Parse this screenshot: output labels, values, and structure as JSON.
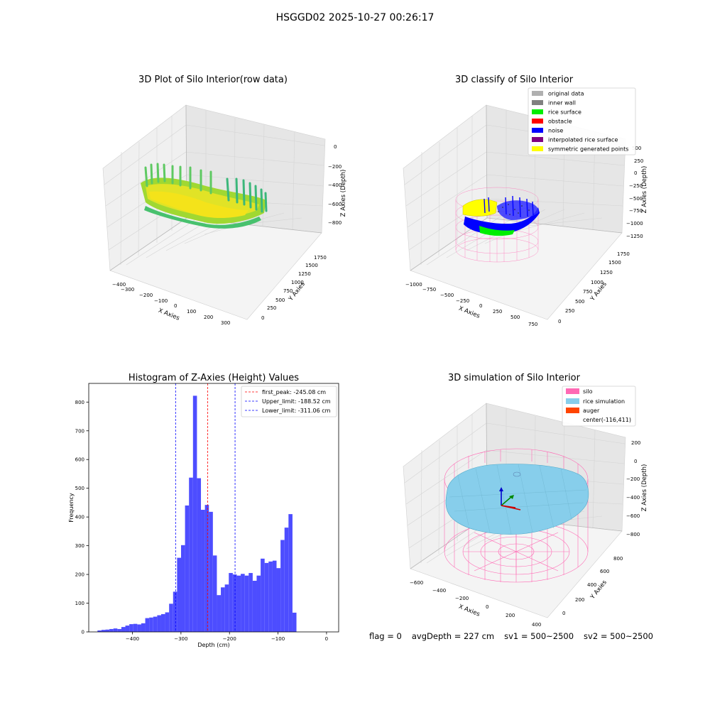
{
  "suptitle": "HSGGD02 2025-10-27 00:26:17",
  "colors": {
    "inner_wall": "#808080",
    "original_data": "#b0b0b0",
    "rice_surface": "#00ee00",
    "obstacle": "#ff0000",
    "noise": "#0000ff",
    "interpolated_rice_surface": "#800080",
    "symmetric_generated_points": "#ffff00",
    "silo": "#ff69b4",
    "rice_simulation": "#87ceeb",
    "auger": "#ff4500",
    "histogram": "#4d4dff"
  },
  "panels": {
    "raw": {
      "title": "3D Plot of Silo Interior(row data)",
      "xlabel": "X Axies",
      "ylabel": "Y Axies",
      "zlabel": "Z Axies (Depth)",
      "xticks": [
        "−400",
        "−300",
        "−200",
        "−100",
        "0",
        "100",
        "200",
        "300"
      ],
      "yticks": [
        "0",
        "250",
        "500",
        "750",
        "1000",
        "1250",
        "1500",
        "1750"
      ],
      "zticks": [
        "0",
        "−200",
        "−400",
        "−600",
        "−800"
      ]
    },
    "classify": {
      "title": "3D classify of Silo Interior",
      "xlabel": "X Axies",
      "ylabel": "Y Axies",
      "zlabel": "Z Axies (Depth)",
      "xticks": [
        "−1000",
        "−750",
        "−500",
        "−250",
        "0",
        "250",
        "500",
        "750"
      ],
      "yticks": [
        "0",
        "250",
        "500",
        "750",
        "1000",
        "1250",
        "1500",
        "1750"
      ],
      "zticks": [
        "500",
        "250",
        "0",
        "−250",
        "−500",
        "−750",
        "−1000",
        "−1250"
      ],
      "legend": [
        {
          "label": "original data",
          "color_key": "original_data"
        },
        {
          "label": "inner wall",
          "color_key": "inner_wall"
        },
        {
          "label": "rice surface",
          "color_key": "rice_surface"
        },
        {
          "label": "obstacle",
          "color_key": "obstacle"
        },
        {
          "label": "noise",
          "color_key": "noise"
        },
        {
          "label": "interpolated rice surface",
          "color_key": "interpolated_rice_surface"
        },
        {
          "label": "symmetric generated points",
          "color_key": "symmetric_generated_points"
        }
      ]
    },
    "simulation": {
      "title": "3D simulation of Silo Interior",
      "xlabel": "X Axies",
      "ylabel": "Y Axies",
      "zlabel": "Z Axies (Depth)",
      "xticks": [
        "−600",
        "−400",
        "−200",
        "0",
        "200",
        "400"
      ],
      "yticks": [
        "0",
        "200",
        "400",
        "600",
        "800"
      ],
      "zticks": [
        "200",
        "0",
        "−200",
        "−400",
        "−600",
        "−800"
      ],
      "legend": [
        {
          "label": "silo",
          "color_key": "silo"
        },
        {
          "label": "rice simulation",
          "color_key": "rice_simulation"
        },
        {
          "label": "auger",
          "color_key": "auger"
        },
        {
          "label": "center(-116,411)",
          "color_key": ""
        }
      ]
    }
  },
  "status": {
    "flag": "flag = 0",
    "avg": "avgDepth = 227 cm",
    "sv1": "sv1 = 500~2500",
    "sv2": "sv2 = 500~2500"
  },
  "chart_data": {
    "type": "bar",
    "title": "Histogram of Z-Axies (Height) Values",
    "xlabel": "Depth (cm)",
    "ylabel": "Frequency",
    "xlim": [
      -490,
      25
    ],
    "ylim": [
      0,
      865
    ],
    "xticks": [
      -400,
      -300,
      -200,
      -100,
      0
    ],
    "xtick_labels": [
      "−400",
      "−300",
      "−200",
      "−100",
      "0"
    ],
    "yticks": [
      0,
      100,
      200,
      300,
      400,
      500,
      600,
      700,
      800
    ],
    "bin_width": 8.2,
    "bin_start": -472,
    "values": [
      5,
      7,
      8,
      10,
      12,
      10,
      17,
      22,
      27,
      28,
      26,
      30,
      48,
      50,
      53,
      58,
      62,
      68,
      98,
      140,
      258,
      302,
      440,
      537,
      822,
      535,
      425,
      442,
      418,
      266,
      128,
      155,
      165,
      205,
      200,
      196,
      202,
      196,
      205,
      178,
      196,
      255,
      240,
      245,
      248,
      222,
      320,
      363,
      410,
      67
    ],
    "vlines": [
      {
        "label": "first_peak: -245.08 cm",
        "x": -245.08,
        "color": "#ff0000"
      },
      {
        "label": "Upper_limit: -188.52 cm",
        "x": -188.52,
        "color": "#0000ff"
      },
      {
        "label": "Lower_limit: -311.06 cm",
        "x": -311.06,
        "color": "#0000ff"
      }
    ]
  }
}
